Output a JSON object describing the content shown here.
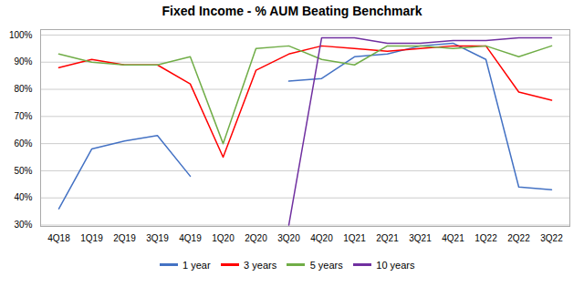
{
  "chart_data": {
    "type": "line",
    "title": "Fixed Income - % AUM Beating Benchmark",
    "categories": [
      "4Q18",
      "1Q19",
      "2Q19",
      "3Q19",
      "4Q19",
      "1Q20",
      "2Q20",
      "3Q20",
      "4Q20",
      "1Q21",
      "2Q21",
      "3Q21",
      "4Q21",
      "1Q22",
      "2Q22",
      "3Q22"
    ],
    "series": [
      {
        "name": "1 year",
        "color": "#4472C4",
        "values": [
          0.36,
          0.58,
          0.61,
          0.63,
          0.48,
          null,
          null,
          0.83,
          0.84,
          0.92,
          0.93,
          0.96,
          0.97,
          0.91,
          0.44,
          0.43
        ]
      },
      {
        "name": "3 years",
        "color": "#FF0000",
        "values": [
          0.88,
          0.91,
          0.89,
          0.89,
          0.82,
          0.55,
          0.87,
          0.93,
          0.96,
          0.95,
          0.94,
          0.95,
          0.96,
          0.96,
          0.79,
          0.76
        ]
      },
      {
        "name": "5 years",
        "color": "#70AD47",
        "values": [
          0.93,
          0.9,
          0.89,
          0.89,
          0.92,
          0.6,
          0.95,
          0.96,
          0.91,
          0.89,
          0.96,
          0.96,
          0.95,
          0.96,
          0.92,
          0.96
        ]
      },
      {
        "name": "10 years",
        "color": "#7030A0",
        "values": [
          null,
          null,
          null,
          null,
          null,
          null,
          null,
          0.3,
          0.99,
          0.99,
          0.97,
          0.97,
          0.98,
          0.98,
          0.99,
          0.99
        ]
      }
    ],
    "ylim": [
      0.295,
      1.02
    ],
    "yticks": [
      {
        "value": 0.3,
        "label": "30%"
      },
      {
        "value": 0.4,
        "label": "40%"
      },
      {
        "value": 0.5,
        "label": "50%"
      },
      {
        "value": 0.6,
        "label": "60%"
      },
      {
        "value": 0.7,
        "label": "70%"
      },
      {
        "value": 0.8,
        "label": "80%"
      },
      {
        "value": 0.9,
        "label": "90%"
      },
      {
        "value": 1.0,
        "label": "100%"
      }
    ],
    "grid": true,
    "legend": "bottom"
  }
}
